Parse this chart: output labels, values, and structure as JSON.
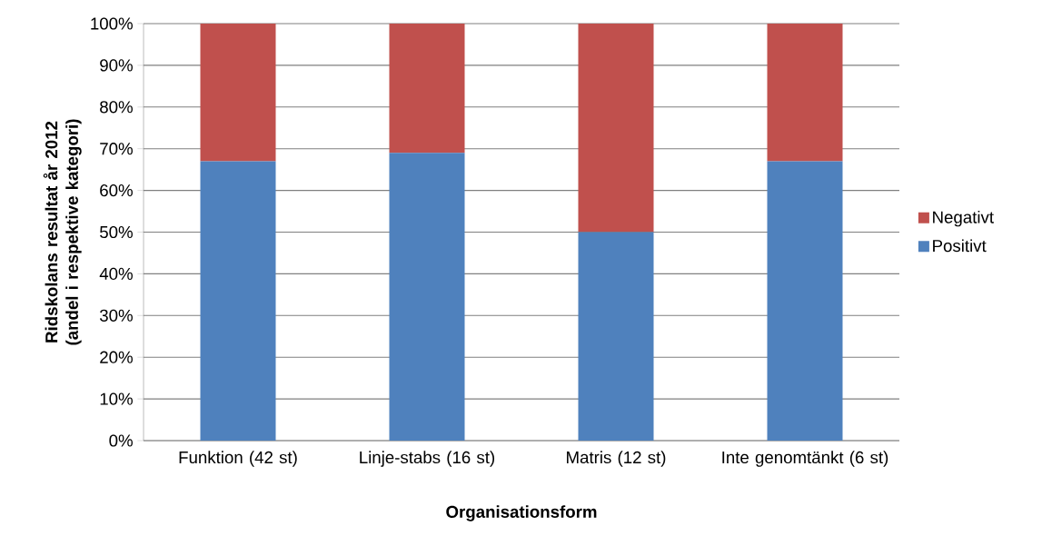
{
  "chart_data": {
    "type": "bar",
    "stacked": true,
    "xlabel": "Organisationsform",
    "ylabel": "Ridskolans resultat år 2012 (andel i respektive kategori)",
    "categories": [
      "Funktion (42 st)",
      "Linje-stabs (16 st)",
      "Matris (12 st)",
      "Inte genomtänkt (6 st)"
    ],
    "series": [
      {
        "name": "Positivt",
        "color": "#4f81bd",
        "values": [
          67,
          69,
          50,
          67
        ]
      },
      {
        "name": "Negativt",
        "color": "#c0504d",
        "values": [
          33,
          31,
          50,
          33
        ]
      }
    ],
    "ylim": [
      0,
      100
    ],
    "yticks": [
      {
        "value": 0,
        "label": "0%"
      },
      {
        "value": 10,
        "label": "10%"
      },
      {
        "value": 20,
        "label": "20%"
      },
      {
        "value": 30,
        "label": "30%"
      },
      {
        "value": 40,
        "label": "40%"
      },
      {
        "value": 50,
        "label": "50%"
      },
      {
        "value": 60,
        "label": "60%"
      },
      {
        "value": 70,
        "label": "70%"
      },
      {
        "value": 80,
        "label": "80%"
      },
      {
        "value": 90,
        "label": "90%"
      },
      {
        "value": 100,
        "label": "100%"
      }
    ],
    "grid": "y",
    "legend": "right"
  }
}
